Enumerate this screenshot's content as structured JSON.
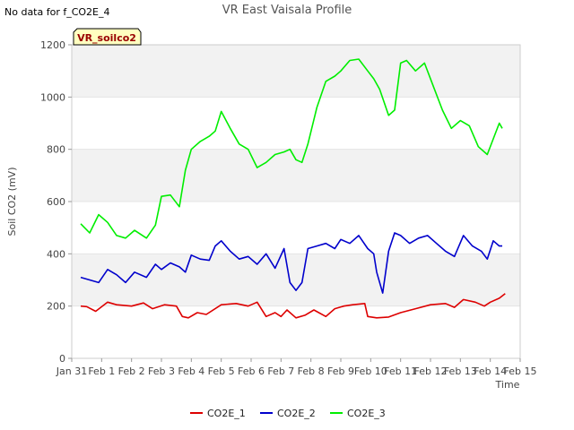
{
  "no_data_note": "No data for f_CO2E_4",
  "chart_data": {
    "type": "line",
    "title": "VR East Vaisala Profile",
    "xlabel": "Time",
    "ylabel": "Soil CO2 (mV)",
    "ylim": [
      0,
      1200
    ],
    "xlim": [
      0,
      15
    ],
    "yticks": [
      0,
      200,
      400,
      600,
      800,
      1000,
      1200
    ],
    "xticks": [
      0,
      1,
      2,
      3,
      4,
      5,
      6,
      7,
      8,
      9,
      10,
      11,
      12,
      13,
      14,
      15
    ],
    "xtick_labels": [
      "Jan 31",
      "Feb 1",
      "Feb 2",
      "Feb 3",
      "Feb 4",
      "Feb 5",
      "Feb 6",
      "Feb 7",
      "Feb 8",
      "Feb 9",
      "Feb 10",
      "Feb 11",
      "Feb 12",
      "Feb 13",
      "Feb 14",
      "Feb 15"
    ],
    "annotation": "VR_soilco2",
    "series": [
      {
        "name": "CO2E_1",
        "color": "#dd0000",
        "x": [
          0.3,
          0.5,
          0.8,
          1.2,
          1.5,
          2.0,
          2.4,
          2.7,
          3.1,
          3.5,
          3.7,
          3.9,
          4.2,
          4.5,
          5.0,
          5.5,
          5.9,
          6.2,
          6.5,
          6.8,
          7.0,
          7.2,
          7.5,
          7.8,
          8.1,
          8.5,
          8.8,
          9.1,
          9.4,
          9.8,
          9.9,
          10.2,
          10.6,
          11.0,
          11.5,
          12.0,
          12.5,
          12.8,
          13.1,
          13.5,
          13.8,
          14.0,
          14.3,
          14.5
        ],
        "values": [
          200,
          198,
          180,
          215,
          205,
          200,
          212,
          190,
          205,
          200,
          160,
          155,
          175,
          168,
          205,
          210,
          200,
          215,
          160,
          175,
          160,
          185,
          155,
          165,
          185,
          160,
          190,
          200,
          205,
          210,
          160,
          155,
          158,
          175,
          190,
          205,
          210,
          195,
          225,
          215,
          200,
          215,
          230,
          248
        ]
      },
      {
        "name": "CO2E_2",
        "color": "#0000cc",
        "x": [
          0.3,
          0.6,
          0.9,
          1.2,
          1.5,
          1.8,
          2.1,
          2.5,
          2.8,
          3.0,
          3.3,
          3.6,
          3.8,
          4.0,
          4.3,
          4.6,
          4.8,
          5.0,
          5.3,
          5.6,
          5.9,
          6.2,
          6.5,
          6.8,
          7.1,
          7.3,
          7.5,
          7.7,
          7.9,
          8.2,
          8.5,
          8.8,
          9.0,
          9.3,
          9.6,
          9.9,
          10.1,
          10.2,
          10.4,
          10.6,
          10.8,
          11.0,
          11.3,
          11.6,
          11.9,
          12.2,
          12.5,
          12.8,
          13.1,
          13.4,
          13.7,
          13.9,
          14.1,
          14.3,
          14.4
        ],
        "values": [
          310,
          300,
          290,
          340,
          320,
          290,
          330,
          310,
          360,
          340,
          365,
          350,
          330,
          395,
          380,
          375,
          430,
          450,
          410,
          380,
          390,
          360,
          400,
          345,
          420,
          290,
          260,
          290,
          420,
          430,
          440,
          420,
          455,
          440,
          470,
          420,
          400,
          330,
          250,
          410,
          480,
          470,
          440,
          460,
          470,
          440,
          410,
          390,
          470,
          430,
          410,
          380,
          450,
          430,
          430
        ]
      },
      {
        "name": "CO2E_3",
        "color": "#00ee00",
        "x": [
          0.3,
          0.6,
          0.9,
          1.2,
          1.5,
          1.8,
          2.1,
          2.5,
          2.8,
          3.0,
          3.3,
          3.6,
          3.8,
          4.0,
          4.3,
          4.6,
          4.8,
          5.0,
          5.3,
          5.6,
          5.9,
          6.2,
          6.5,
          6.8,
          7.1,
          7.3,
          7.5,
          7.7,
          7.9,
          8.2,
          8.5,
          8.8,
          9.0,
          9.3,
          9.6,
          9.9,
          10.1,
          10.3,
          10.6,
          10.8,
          11.0,
          11.2,
          11.5,
          11.8,
          12.1,
          12.4,
          12.7,
          13.0,
          13.3,
          13.6,
          13.9,
          14.1,
          14.3,
          14.4
        ],
        "values": [
          515,
          480,
          550,
          520,
          470,
          460,
          490,
          460,
          510,
          620,
          625,
          580,
          720,
          800,
          830,
          850,
          870,
          945,
          880,
          820,
          800,
          730,
          750,
          780,
          790,
          800,
          760,
          750,
          820,
          960,
          1060,
          1080,
          1100,
          1140,
          1145,
          1100,
          1070,
          1030,
          930,
          950,
          1130,
          1140,
          1100,
          1130,
          1040,
          950,
          880,
          910,
          890,
          810,
          780,
          840,
          900,
          880
        ]
      }
    ],
    "legend": {
      "position": "bottom-center",
      "items": [
        "CO2E_1",
        "CO2E_2",
        "CO2E_3"
      ]
    },
    "shaded_bands": [
      [
        200,
        400
      ],
      [
        600,
        800
      ],
      [
        1000,
        1200
      ]
    ]
  }
}
